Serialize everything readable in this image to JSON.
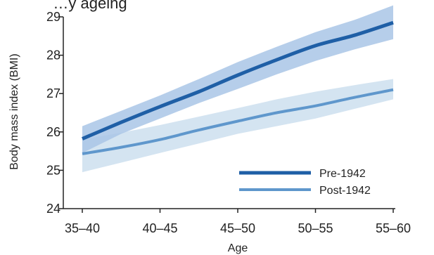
{
  "chart_data": {
    "type": "line",
    "title": "…y ageing",
    "xlabel": "Age",
    "ylabel": "Body mass index (BMI)",
    "categories": [
      "35–40",
      "40–45",
      "45–50",
      "50–55",
      "55–60"
    ],
    "ylim": [
      24,
      29
    ],
    "yticks": [
      24,
      25,
      26,
      27,
      28,
      29
    ],
    "grid": false,
    "legend_position": "bottom-right",
    "series": [
      {
        "name": "Pre-1942",
        "color": "#1f5fa6",
        "band_color": "#a9c6e6",
        "x": [
          0,
          0.5,
          1,
          1.5,
          2,
          2.5,
          3,
          3.5,
          4
        ],
        "values": [
          25.82,
          26.25,
          26.66,
          27.05,
          27.48,
          27.88,
          28.25,
          28.52,
          28.85
        ],
        "upper": [
          26.15,
          26.55,
          26.95,
          27.38,
          27.82,
          28.22,
          28.6,
          28.92,
          29.3
        ],
        "lower": [
          25.45,
          25.95,
          26.35,
          26.75,
          27.12,
          27.5,
          27.85,
          28.15,
          28.42
        ]
      },
      {
        "name": "Post-1942",
        "color": "#5f97cc",
        "band_color": "#cfe1f0",
        "x": [
          0,
          0.5,
          1,
          1.5,
          2,
          2.5,
          3,
          3.5,
          4
        ],
        "values": [
          25.43,
          25.6,
          25.8,
          26.05,
          26.28,
          26.5,
          26.68,
          26.9,
          27.1
        ],
        "upper": [
          25.8,
          25.98,
          26.18,
          26.4,
          26.62,
          26.85,
          27.05,
          27.22,
          27.38
        ],
        "lower": [
          24.95,
          25.2,
          25.45,
          25.7,
          25.95,
          26.15,
          26.35,
          26.6,
          26.85
        ]
      }
    ]
  }
}
